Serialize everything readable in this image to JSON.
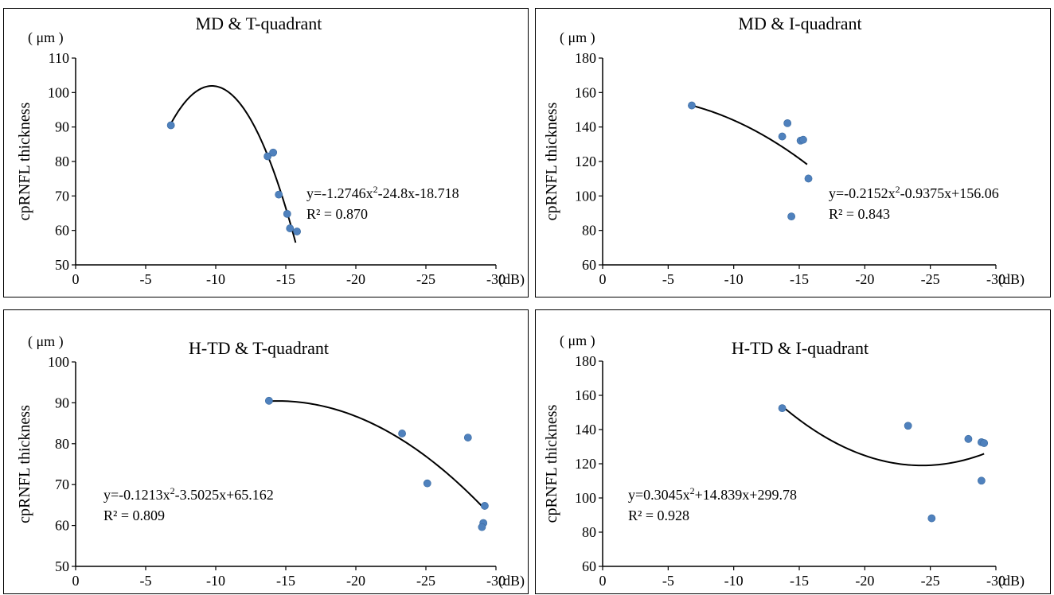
{
  "chart_data": [
    {
      "type": "scatter",
      "title": "MD & T-quadrant",
      "unit": "( μm )",
      "ylabel": "cpRNFL thickness",
      "xunit": "(dB)",
      "xlim": [
        0,
        -30
      ],
      "ylim": [
        50,
        110
      ],
      "xticks": [
        0,
        -5,
        -10,
        -15,
        -20,
        -25,
        -30
      ],
      "yticks": [
        50,
        60,
        70,
        80,
        90,
        100,
        110
      ],
      "points": [
        [
          -6.8,
          90.5
        ],
        [
          -13.7,
          81.5
        ],
        [
          -14.1,
          82.6
        ],
        [
          -14.5,
          70.4
        ],
        [
          -15.1,
          64.8
        ],
        [
          -15.3,
          60.6
        ],
        [
          -15.8,
          59.7
        ]
      ],
      "fit": {
        "a": -1.2746,
        "b": -24.8,
        "c": -18.718,
        "x_from": -6.8,
        "x_to": -15.7
      },
      "equation": "y=-1.2746x",
      "equation_tail": "-24.8x-18.718",
      "r2": "R² = 0.870",
      "marker_color": "#4f81bd"
    },
    {
      "type": "scatter",
      "title": "MD & I-quadrant",
      "unit": "( μm )",
      "ylabel": "cpRNFL thickness",
      "xunit": "(dB)",
      "xlim": [
        0,
        -30
      ],
      "ylim": [
        60,
        180
      ],
      "xticks": [
        0,
        -5,
        -10,
        -15,
        -20,
        -25,
        -30
      ],
      "yticks": [
        60,
        80,
        100,
        120,
        140,
        160,
        180
      ],
      "points": [
        [
          -6.8,
          152.5
        ],
        [
          -13.7,
          134.5
        ],
        [
          -14.1,
          142.2
        ],
        [
          -14.4,
          88.1
        ],
        [
          -15.1,
          132.1
        ],
        [
          -15.3,
          132.6
        ],
        [
          -15.7,
          110.1
        ]
      ],
      "fit": {
        "a": -0.2152,
        "b": -0.9375,
        "c": 156.06,
        "x_from": -6.8,
        "x_to": -15.6
      },
      "equation": "y=-0.2152x",
      "equation_tail": "-0.9375x+156.06",
      "r2": "R² = 0.843",
      "marker_color": "#4f81bd"
    },
    {
      "type": "scatter",
      "title": "H-TD & T-quadrant",
      "unit": "( μm )",
      "ylabel": "cpRNFL thickness",
      "xunit": "(dB)",
      "xlim": [
        0,
        -30
      ],
      "ylim": [
        50,
        100
      ],
      "xticks": [
        0,
        -5,
        -10,
        -15,
        -20,
        -25,
        -30
      ],
      "yticks": [
        50,
        60,
        70,
        80,
        90,
        100
      ],
      "points": [
        [
          -13.8,
          90.5
        ],
        [
          -23.3,
          82.5
        ],
        [
          -25.1,
          70.3
        ],
        [
          -28,
          81.5
        ],
        [
          -29.2,
          64.8
        ],
        [
          -29.1,
          60.6
        ],
        [
          -29,
          59.6
        ]
      ],
      "fit": {
        "a": -0.1213,
        "b": -3.5025,
        "c": 65.162,
        "x_from": -13.8,
        "x_to": -29.2
      },
      "equation": "y=-0.1213x",
      "equation_tail": "-3.5025x+65.162",
      "r2": "R² = 0.809",
      "marker_color": "#4f81bd"
    },
    {
      "type": "scatter",
      "title": "H-TD & I-quadrant",
      "unit": "( μm )",
      "ylabel": "cpRNFL thickness",
      "xunit": "(dB)",
      "xlim": [
        0,
        -30
      ],
      "ylim": [
        60,
        180
      ],
      "xticks": [
        0,
        -5,
        -10,
        -15,
        -20,
        -25,
        -30
      ],
      "yticks": [
        60,
        80,
        100,
        120,
        140,
        160,
        180
      ],
      "points": [
        [
          -13.7,
          152.5
        ],
        [
          -23.3,
          142.2
        ],
        [
          -25.1,
          88.1
        ],
        [
          -27.9,
          134.5
        ],
        [
          -28.9,
          132.6
        ],
        [
          -29.1,
          132.1
        ],
        [
          -28.9,
          110.1
        ]
      ],
      "fit": {
        "a": 0.3045,
        "b": 14.839,
        "c": 299.78,
        "x_from": -13.7,
        "x_to": -29.1
      },
      "equation": "y=0.3045x",
      "equation_tail": "+14.839x+299.78",
      "r2": "R² = 0.928",
      "marker_color": "#4f81bd"
    }
  ]
}
